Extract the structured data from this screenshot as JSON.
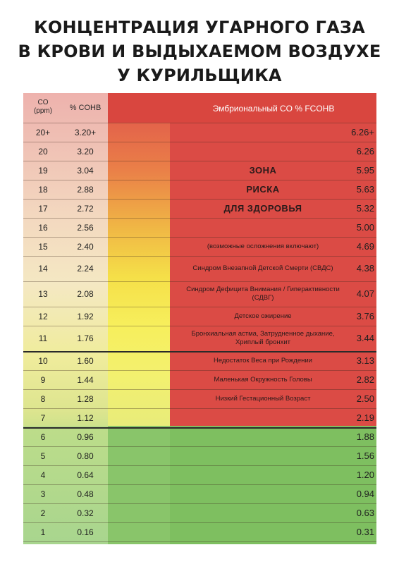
{
  "title_lines": [
    "КОНЦЕНТРАЦИЯ УГАРНОГО ГАЗА",
    "В КРОВИ И ВЫДЫХАЕМОМ ВОЗДУХЕ",
    "У КУРИЛЬЩИКА"
  ],
  "header": {
    "co": "CO",
    "co_unit": "(ppm)",
    "cohb": "% COHB",
    "fcohb": "Эмбриональный CO % FCOHB"
  },
  "rows": [
    {
      "co": "20+",
      "cohb": "3.20+",
      "note": "",
      "fcohb": "6.26+"
    },
    {
      "co": "20",
      "cohb": "3.20",
      "note": "",
      "fcohb": "6.26"
    },
    {
      "co": "19",
      "cohb": "3.04",
      "note": "ЗОНА",
      "fcohb": "5.95"
    },
    {
      "co": "18",
      "cohb": "2.88",
      "note": "РИСКА",
      "fcohb": "5.63"
    },
    {
      "co": "17",
      "cohb": "2.72",
      "note": "ДЛЯ ЗДОРОВЬЯ",
      "fcohb": "5.32"
    },
    {
      "co": "16",
      "cohb": "2.56",
      "note": "",
      "fcohb": "5.00"
    },
    {
      "co": "15",
      "cohb": "2.40",
      "note": "(возможные осложнения включают)",
      "fcohb": "4.69"
    },
    {
      "co": "14",
      "cohb": "2.24",
      "note": "Синдром Внезапной Детской Смерти (СВДС)",
      "fcohb": "4.38"
    },
    {
      "co": "13",
      "cohb": "2.08",
      "note": "Синдром Дефицита Внимания / Гиперактивности (СДВГ)",
      "fcohb": "4.07"
    },
    {
      "co": "12",
      "cohb": "1.92",
      "note": "Детское ожирение",
      "fcohb": "3.76"
    },
    {
      "co": "11",
      "cohb": "1.76",
      "note": "Бронхиальная астма, Затрудненное дыхание, Хриплый бронхит",
      "fcohb": "3.44"
    },
    {
      "co": "10",
      "cohb": "1.60",
      "note": "Недостаток Веса при Рождении",
      "fcohb": "3.13"
    },
    {
      "co": "9",
      "cohb": "1.44",
      "note": "Маленькая Окружность Головы",
      "fcohb": "2.82"
    },
    {
      "co": "8",
      "cohb": "1.28",
      "note": "Низкий Гестационный Возраст",
      "fcohb": "2.50"
    },
    {
      "co": "7",
      "cohb": "1.12",
      "note": "",
      "fcohb": "2.19"
    },
    {
      "co": "6",
      "cohb": "0.96",
      "note": "",
      "fcohb": "1.88"
    },
    {
      "co": "5",
      "cohb": "0.80",
      "note": "",
      "fcohb": "1.56"
    },
    {
      "co": "4",
      "cohb": "0.64",
      "note": "",
      "fcohb": "1.20"
    },
    {
      "co": "3",
      "cohb": "0.48",
      "note": "",
      "fcohb": "0.94"
    },
    {
      "co": "2",
      "cohb": "0.32",
      "note": "",
      "fcohb": "0.63"
    },
    {
      "co": "1",
      "cohb": "0.16",
      "note": "",
      "fcohb": "0.31"
    }
  ],
  "colors": {
    "danger": "#db4b45",
    "safe": "#7ebf60",
    "title": "#1a1a1a"
  }
}
